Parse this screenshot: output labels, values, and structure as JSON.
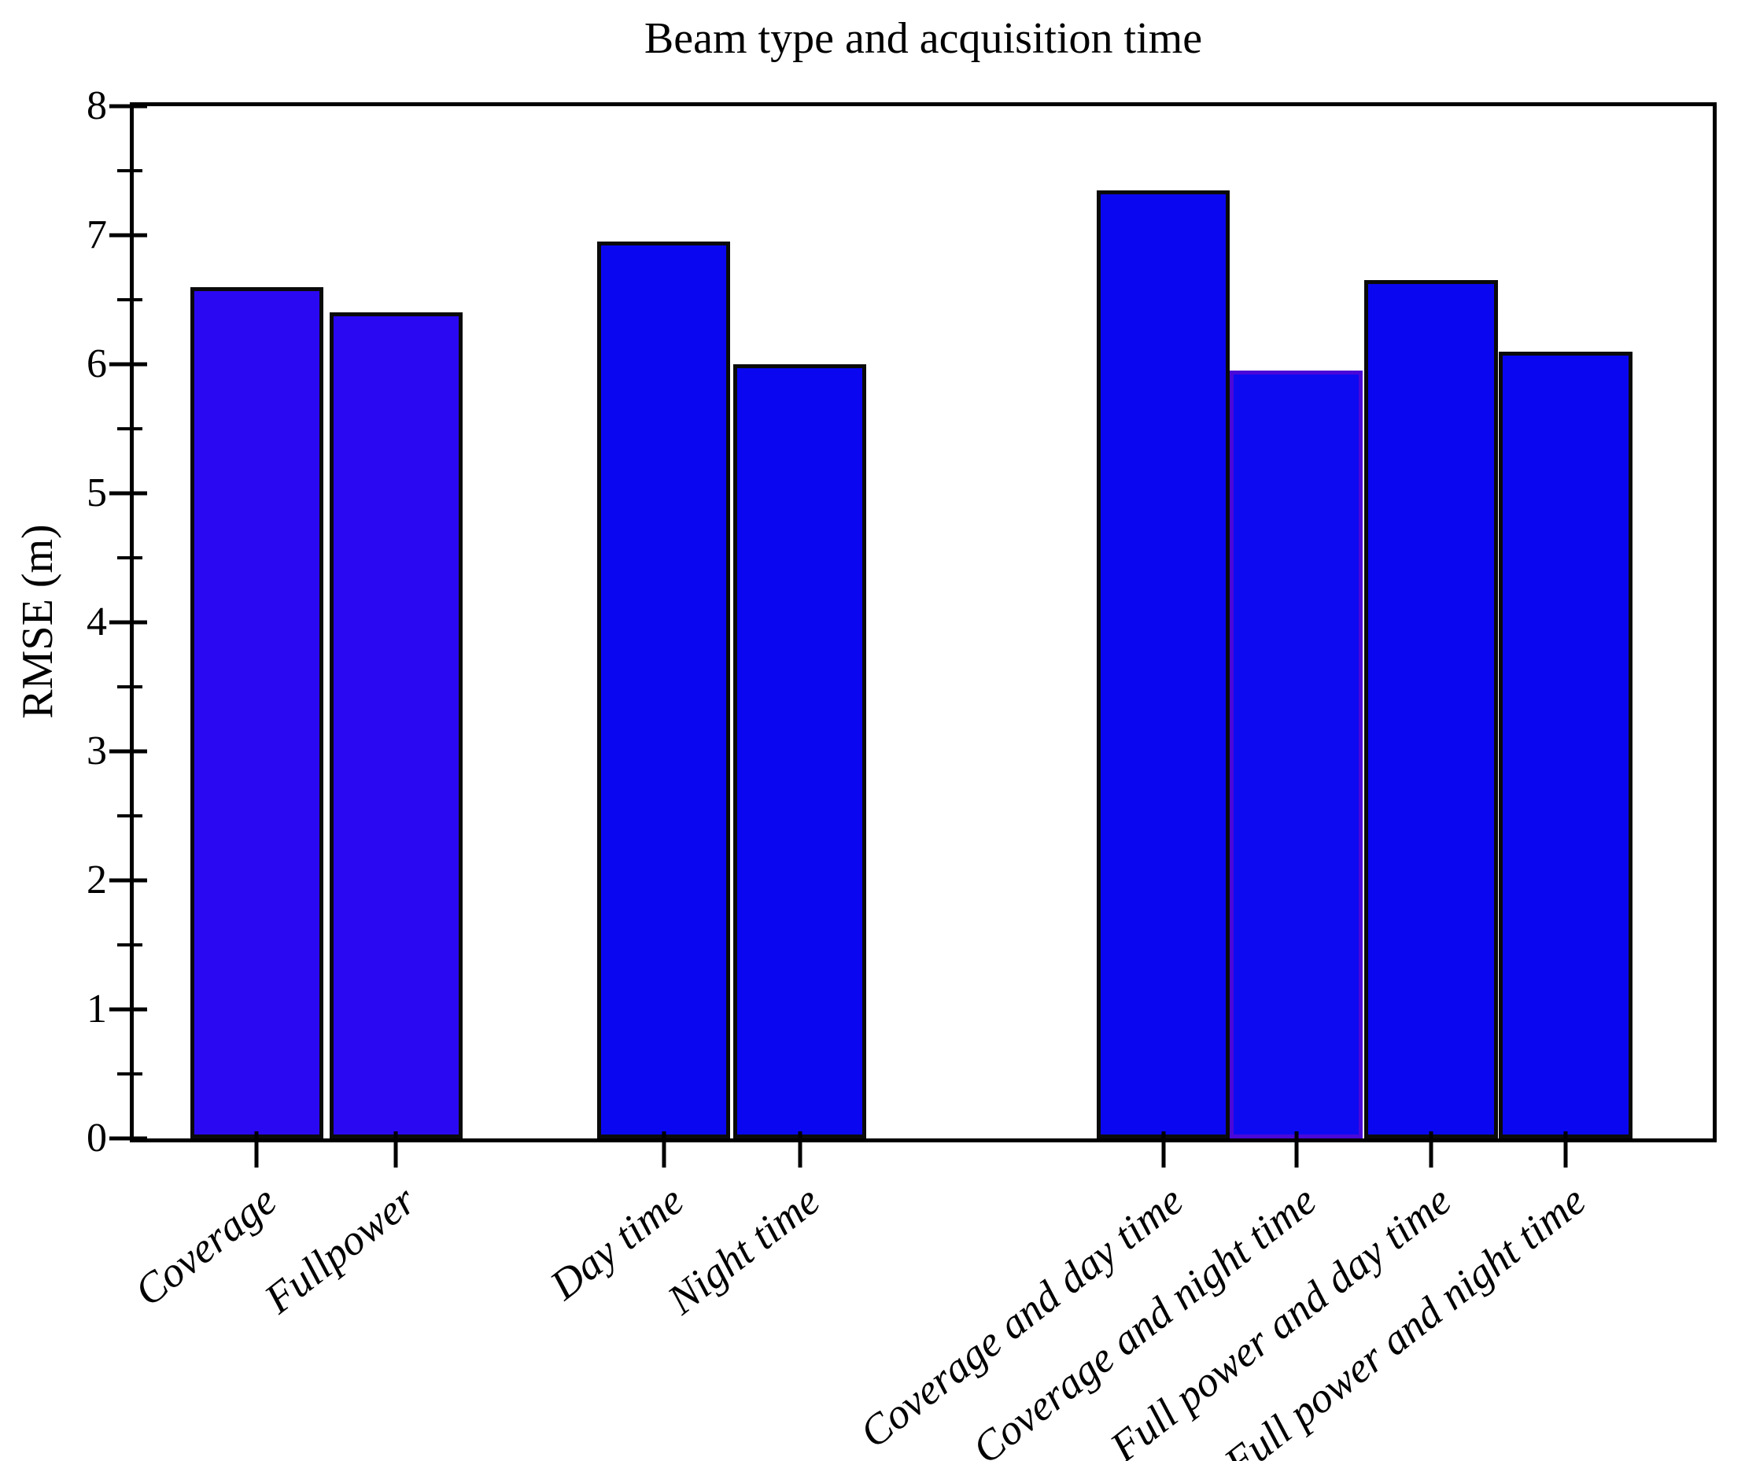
{
  "figure": {
    "background": "#ffffff",
    "axis_color": "#000000",
    "text_color": "#000000"
  },
  "chart_data": {
    "type": "bar",
    "title": "Beam type and acquisition time",
    "xlabel": "",
    "ylabel": "RMSE (m)",
    "ylim": [
      0,
      8
    ],
    "grid": false,
    "legend": false,
    "y_major_ticks": [
      0,
      1,
      2,
      3,
      4,
      5,
      6,
      7,
      8
    ],
    "y_minor_ticks": [
      0.5,
      1.5,
      2.5,
      3.5,
      4.5,
      5.5,
      6.5,
      7.5
    ],
    "categories": [
      "Coverage",
      "Fullpower",
      "Day time",
      "Night time",
      "Coverage and day time",
      "Coverage and night time",
      "Full power and day time",
      "Full power and night time"
    ],
    "values": [
      6.6,
      6.4,
      6.95,
      6.0,
      7.35,
      5.95,
      6.65,
      6.1
    ],
    "bar_width_frac": 0.0843,
    "default_edge_color": "#0A0A0A",
    "highlight_edge_color": "#4A08D8",
    "bars": [
      {
        "label": "Coverage",
        "value": 6.6,
        "fill": "#2B08F2",
        "edge": "#0A0A0A",
        "center": 0.0778
      },
      {
        "label": "Fullpower",
        "value": 6.4,
        "fill": "#2B08F2",
        "edge": "#0A0A0A",
        "center": 0.1661
      },
      {
        "label": "Day time",
        "value": 6.95,
        "fill": "#0A07F0",
        "edge": "#0A0A0A",
        "center": 0.3357
      },
      {
        "label": "Night time",
        "value": 6.0,
        "fill": "#0A07F0",
        "edge": "#0A0A0A",
        "center": 0.4219
      },
      {
        "label": "Coverage and day time",
        "value": 7.35,
        "fill": "#0A07F0",
        "edge": "#0A0A0A",
        "center": 0.652
      },
      {
        "label": "Coverage and night time",
        "value": 5.95,
        "fill": "#0D0AF2",
        "edge": "#4A08D8",
        "center": 0.7363
      },
      {
        "label": "Full power and day time",
        "value": 6.65,
        "fill": "#0A07F0",
        "edge": "#0A0A0A",
        "center": 0.8216
      },
      {
        "label": "Full power and night time",
        "value": 6.1,
        "fill": "#0A07F0",
        "edge": "#0A0A0A",
        "center": 0.9068
      }
    ]
  }
}
